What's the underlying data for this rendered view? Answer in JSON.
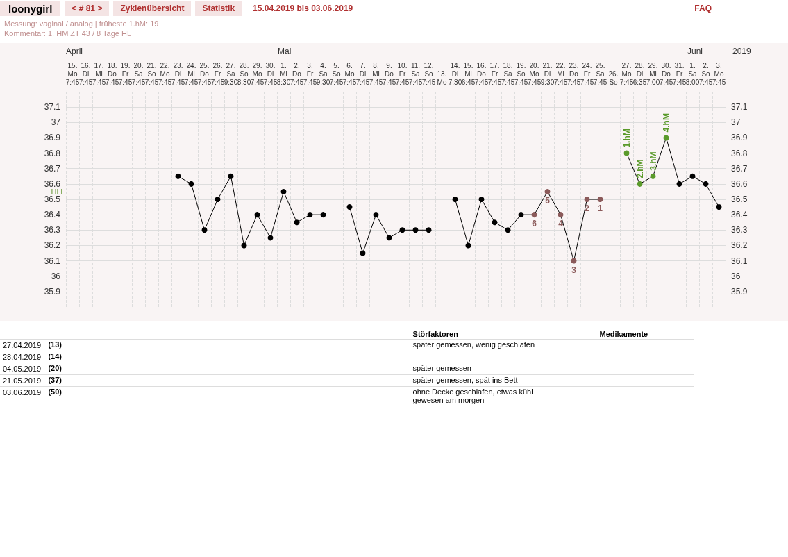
{
  "chart_data": {
    "type": "line",
    "title": "loonygirl",
    "subtitle": "Messung: vaginal / analog | früheste 1.hM: 19",
    "annotations": [
      "< # 81 >",
      "Zyklenübersicht",
      "Statistik",
      "15.04.2019 bis 03.06.2019",
      "FAQ",
      "Kommentar: 1. HM ZT 43 / 8 Tage HL",
      "April",
      "Mai",
      "Juni",
      "2019",
      "Störfaktoren",
      "Medikamente",
      "27.04.2019",
      "(13)",
      "später gemessen, wenig geschlafen",
      "28.04.2019",
      "(14)",
      "04.05.2019",
      "(20)",
      "später gemessen",
      "21.05.2019",
      "(37)",
      "später gemessen, spät ins Bett",
      "03.06.2019",
      "(50)",
      "ohne Decke geschlafen, etwas kühl gewesen am morgen",
      {
        "text": "6",
        "x": "20.\nMo\n7:45",
        "y": 36.4
      },
      {
        "text": "5",
        "x": "21.\nDi\n9:30",
        "y": 36.55
      },
      {
        "text": "4",
        "x": "22.\nMi\n7:45",
        "y": 36.4
      },
      {
        "text": "3",
        "x": "23.\nDo\n7:45",
        "y": 36.1
      },
      {
        "text": "2",
        "x": "24.\nFr\n7:45",
        "y": 36.5
      },
      {
        "text": "1",
        "x": "25.\nSa\n7:45",
        "y": 36.5
      },
      {
        "text": "1.hM",
        "x": "27.\nMo\n7:45",
        "y": 36.8
      },
      {
        "text": "2.hM",
        "x": "28.\nDi\n6:35",
        "y": 36.6
      },
      {
        "text": "3.hM",
        "x": "29.\nMi\n7:00",
        "y": 36.65
      },
      {
        "text": "4.hM",
        "x": "30.\nDo\n7:45",
        "y": 36.9
      }
    ],
    "categories": [
      "15.\nMo\n7:45",
      "16.\nDi\n7:45",
      "17.\nMi\n7:45",
      "18.\nDo\n7:45",
      "19.\nFr\n7:45",
      "20.\nSa\n7:45",
      "21.\nSo\n7:45",
      "22.\nMo\n7:45",
      "23.\nDi\n7:45",
      "24.\nMi\n7:45",
      "25.\nDo\n7:45",
      "26.\nFr\n7:45",
      "27.\nSa\n9:30",
      "28.\nSo\n8:30",
      "29.\nMo\n7:45",
      "30.\nDi\n7:45",
      "1.\nMi\n8:30",
      "2.\nDo\n7:45",
      "3.\nFr\n7:45",
      "4.\nSa\n9:30",
      "5.\nSo\n7:45",
      "6.\nMo\n7:45",
      "7.\nDi\n7:45",
      "8.\nMi\n7:45",
      "9.\nDo\n7:45",
      "10.\nFr\n7:45",
      "11.\nSa\n7:45",
      "12.\nSo\n7:45",
      "13.\nMo",
      "14.\nDi\n7:30",
      "15.\nMi\n6:45",
      "16.\nDo\n7:45",
      "17.\nFr\n7:45",
      "18.\nSa\n7:45",
      "19.\nSo\n7:45",
      "20.\nMo\n7:45",
      "21.\nDi\n9:30",
      "22.\nMi\n7:45",
      "23.\nDo\n7:45",
      "24.\nFr\n7:45",
      "25.\nSa\n7:45",
      "26.\nSo",
      "27.\nMo\n7:45",
      "28.\nDi\n6:35",
      "29.\nMi\n7:00",
      "30.\nDo\n7:45",
      "31.\nFr\n7:45",
      "1.\nSa\n8:00",
      "2.\nSo\n7:45",
      "3.\nMo\n7:45"
    ],
    "series": [
      {
        "color": "#000000",
        "values": [
          null,
          null,
          null,
          null,
          null,
          null,
          null,
          null,
          36.65,
          36.6,
          36.3,
          36.5,
          36.65,
          36.2,
          36.4,
          36.25,
          36.55,
          36.35,
          36.4,
          36.4,
          null,
          36.45,
          36.15,
          36.4,
          36.25,
          36.3,
          36.3,
          36.3,
          null,
          36.5,
          36.2,
          36.5,
          36.35,
          36.3,
          36.4,
          36.4,
          36.55,
          36.4,
          36.1,
          36.5,
          36.5,
          null,
          36.8,
          36.6,
          36.65,
          36.9,
          36.6,
          36.65,
          36.6,
          36.45
        ],
        "colors": [
          null,
          null,
          null,
          null,
          null,
          null,
          null,
          null,
          "#000000",
          "#000000",
          "#000000",
          "#000000",
          "#000000",
          "#000000",
          "#000000",
          "#000000",
          "#000000",
          "#000000",
          "#000000",
          "#000000",
          null,
          "#000000",
          "#000000",
          "#000000",
          "#000000",
          "#000000",
          "#000000",
          "#000000",
          null,
          "#000000",
          "#000000",
          "#000000",
          "#000000",
          "#000000",
          "#000000",
          "#8b5a5a",
          "#8b5a5a",
          "#8b5a5a",
          "#8b5a5a",
          "#8b5a5a",
          "#8b5a5a",
          null,
          "#5a9a2a",
          "#5a9a2a",
          "#5a9a2a",
          "#5a9a2a",
          "#000000",
          "#000000",
          "#000000",
          "#000000"
        ]
      }
    ],
    "ylim": [
      35.8,
      37.2
    ],
    "yticks": [
      35.9,
      36,
      36.1,
      36.2,
      36.3,
      36.4,
      36.5,
      36.6,
      36.7,
      36.8,
      36.9,
      37,
      37.1
    ],
    "y2lim": [
      35.8,
      37.2
    ],
    "y2ticks": [
      35.9,
      36,
      36.1,
      36.2,
      36.3,
      36.4,
      36.5,
      36.6,
      36.7,
      36.8,
      36.9,
      37,
      37.1
    ],
    "ref_lines": [
      {
        "axis": "y",
        "value": 36.55,
        "label": "HLi",
        "color": "#6a9a3a"
      }
    ],
    "grid": true,
    "marker": "circle",
    "line_style": "solid"
  }
}
